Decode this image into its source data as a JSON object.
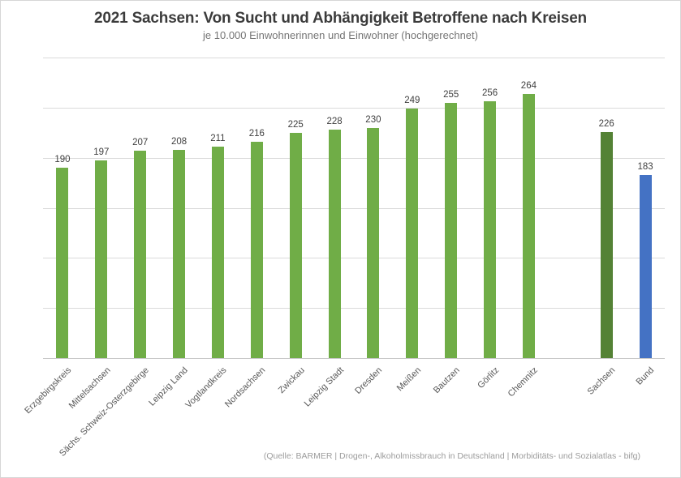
{
  "chart_data": {
    "type": "bar",
    "title": "2021 Sachsen: Von Sucht und Abhängigkeit Betroffene nach Kreisen",
    "subtitle": "je 10.000 Einwohnerinnen und Einwohner (hochgerechnet)",
    "source": "(Quelle: BARMER | Drogen-, Alkoholmissbrauch in Deutschland | Morbiditäts- und Sozialatlas - bifg)",
    "bars": [
      {
        "label": "Erzgebirgskreis",
        "value": 190,
        "group": "district"
      },
      {
        "label": "Mittelsachsen",
        "value": 197,
        "group": "district"
      },
      {
        "label": "Sächs. Schweiz-Osterzgebirge",
        "value": 207,
        "group": "district"
      },
      {
        "label": "Leipzig Land",
        "value": 208,
        "group": "district"
      },
      {
        "label": "Vogtlandkreis",
        "value": 211,
        "group": "district"
      },
      {
        "label": "Nordsachsen",
        "value": 216,
        "group": "district"
      },
      {
        "label": "Zwickau",
        "value": 225,
        "group": "district"
      },
      {
        "label": "Leipzig Stadt",
        "value": 228,
        "group": "district"
      },
      {
        "label": "Dresden",
        "value": 230,
        "group": "district"
      },
      {
        "label": "Meißen",
        "value": 249,
        "group": "district"
      },
      {
        "label": "Bautzen",
        "value": 255,
        "group": "district"
      },
      {
        "label": "Görlitz",
        "value": 256,
        "group": "district"
      },
      {
        "label": "Chemnitz",
        "value": 264,
        "group": "district"
      },
      {
        "label": "Sachsen",
        "value": 226,
        "group": "state"
      },
      {
        "label": "Bund",
        "value": 183,
        "group": "federal"
      }
    ],
    "ylim": [
      0,
      300
    ],
    "gridline_step": 50,
    "grid": "horizontal",
    "y_axis_tick_labels": "none",
    "value_labels": "above-bars",
    "category_label_rotation_deg": 45,
    "gap_before_label": "Sachsen",
    "legend": "none",
    "group_colors": {
      "district": "#70AD47",
      "state": "#548235",
      "federal": "#4472C4"
    }
  },
  "colors": {
    "background": "#FFFFFF",
    "chart_border": "#D6D6D6",
    "gridline": "#DADADA",
    "axis_line": "#C9C9C9",
    "title_text": "#3B3B3B",
    "subtitle_text": "#757575",
    "value_label_text": "#404040",
    "category_label_text": "#595959",
    "source_text": "#9C9C9C"
  }
}
